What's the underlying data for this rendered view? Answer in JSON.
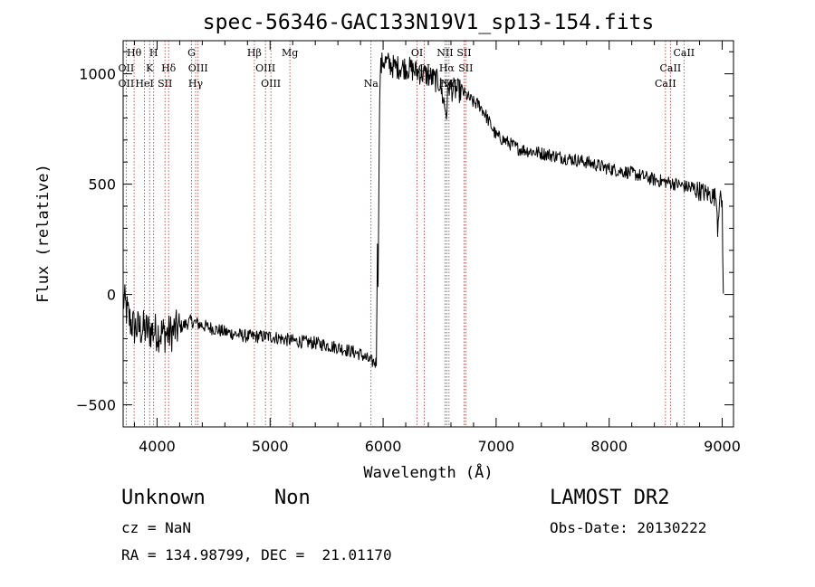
{
  "chart_data": {
    "type": "line",
    "title": "spec-56346-GAC133N19V1_sp13-154.fits",
    "xlabel": "Wavelength (Å)",
    "ylabel": "Flux (relative)",
    "xlim": [
      3700,
      9100
    ],
    "ylim": [
      -600,
      1150
    ],
    "xticks": [
      4000,
      5000,
      6000,
      7000,
      8000,
      9000
    ],
    "yticks": [
      -500,
      0,
      500,
      1000
    ],
    "grid": false,
    "anchors": [
      [
        3700,
        -20
      ],
      [
        3760,
        -120
      ],
      [
        3800,
        -150
      ],
      [
        3900,
        -160
      ],
      [
        4000,
        -170
      ],
      [
        4100,
        -180
      ],
      [
        4200,
        -150
      ],
      [
        4300,
        -120
      ],
      [
        4400,
        -140
      ],
      [
        4600,
        -170
      ],
      [
        4800,
        -190
      ],
      [
        5000,
        -190
      ],
      [
        5200,
        -210
      ],
      [
        5400,
        -220
      ],
      [
        5600,
        -240
      ],
      [
        5800,
        -270
      ],
      [
        5880,
        -300
      ],
      [
        5940,
        -310
      ],
      [
        5950,
        250
      ],
      [
        5955,
        0
      ],
      [
        5965,
        700
      ],
      [
        5975,
        1020
      ],
      [
        6000,
        1060
      ],
      [
        6100,
        1030
      ],
      [
        6200,
        1030
      ],
      [
        6300,
        1010
      ],
      [
        6400,
        990
      ],
      [
        6500,
        960
      ],
      [
        6560,
        820
      ],
      [
        6580,
        950
      ],
      [
        6600,
        930
      ],
      [
        6700,
        920
      ],
      [
        6800,
        870
      ],
      [
        6850,
        860
      ],
      [
        6900,
        820
      ],
      [
        6950,
        770
      ],
      [
        7000,
        720
      ],
      [
        7200,
        660
      ],
      [
        7400,
        640
      ],
      [
        7600,
        620
      ],
      [
        7800,
        600
      ],
      [
        8000,
        570
      ],
      [
        8200,
        550
      ],
      [
        8400,
        520
      ],
      [
        8600,
        500
      ],
      [
        8800,
        470
      ],
      [
        8950,
        440
      ],
      [
        8960,
        300
      ],
      [
        8975,
        440
      ],
      [
        9000,
        410
      ],
      [
        9010,
        0
      ]
    ],
    "lines": [
      {
        "label": "Hθ",
        "x": 3797,
        "row": 0
      },
      {
        "label": "OII",
        "x": 3727,
        "row": 1
      },
      {
        "label": "OII",
        "x": 3727,
        "row": 2
      },
      {
        "label": "H",
        "x": 3970,
        "row": 0
      },
      {
        "label": "K",
        "x": 3934,
        "row": 1
      },
      {
        "label": "HeI",
        "x": 3889,
        "row": 2
      },
      {
        "label": "Hδ",
        "x": 4102,
        "row": 1
      },
      {
        "label": "SII",
        "x": 4070,
        "row": 2
      },
      {
        "label": "G",
        "x": 4305,
        "row": 0
      },
      {
        "label": "OIII",
        "x": 4363,
        "row": 1
      },
      {
        "label": "Hγ",
        "x": 4341,
        "row": 2
      },
      {
        "label": "Hβ",
        "x": 4861,
        "row": 0
      },
      {
        "label": "OIII",
        "x": 4959,
        "row": 1
      },
      {
        "label": "OIII",
        "x": 5007,
        "row": 2
      },
      {
        "label": "Mg",
        "x": 5175,
        "row": 0
      },
      {
        "label": "Na",
        "x": 5893,
        "row": 2
      },
      {
        "label": "OI",
        "x": 6300,
        "row": 0
      },
      {
        "label": "OI",
        "x": 6364,
        "row": 1
      },
      {
        "label": "NII",
        "x": 6548,
        "row": 0
      },
      {
        "label": "Hα",
        "x": 6563,
        "row": 1
      },
      {
        "label": "NII",
        "x": 6583,
        "row": 2
      },
      {
        "label": "SII",
        "x": 6716,
        "row": 0
      },
      {
        "label": "SII",
        "x": 6731,
        "row": 1
      },
      {
        "label": "Hα",
        "x": 6563,
        "row": 2
      },
      {
        "label": "CaII",
        "x": 8662,
        "row": 0
      },
      {
        "label": "CaII",
        "x": 8542,
        "row": 1
      },
      {
        "label": "CaII",
        "x": 8498,
        "row": 2
      }
    ]
  },
  "info": {
    "class": "Unknown",
    "subclass": "Non",
    "survey": "LAMOST DR2",
    "cz": "cz = NaN",
    "obs_date": "Obs-Date: 20130222",
    "coords": "RA = 134.98799, DEC =  21.01170"
  }
}
